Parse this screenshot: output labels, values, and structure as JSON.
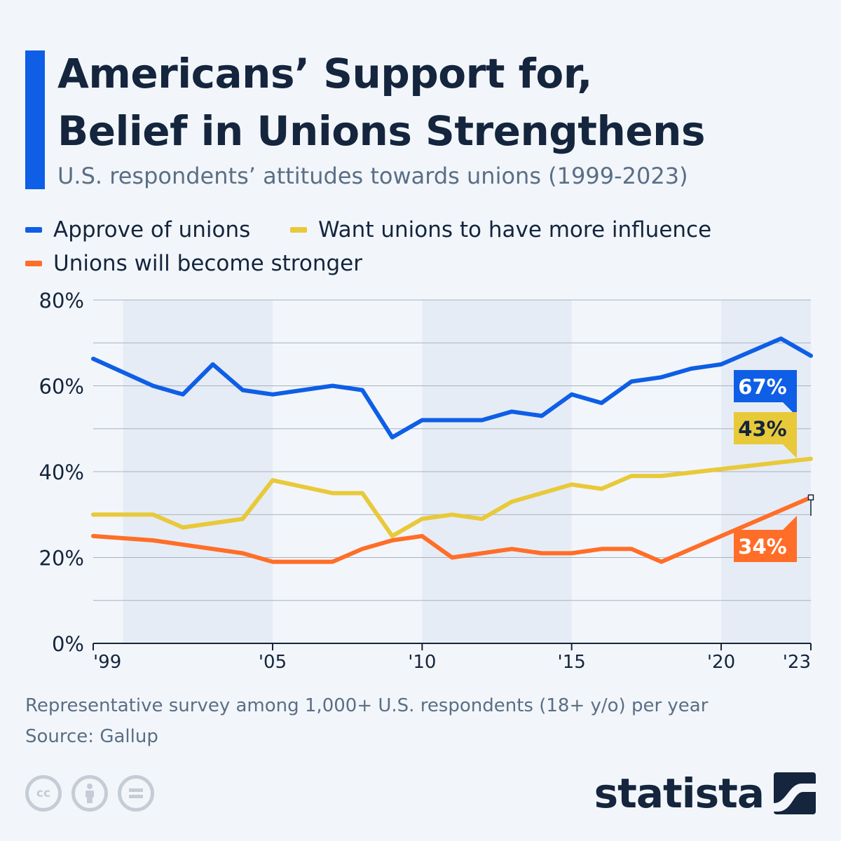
{
  "header": {
    "title_line1": "Americans’ Support for,",
    "title_line2": "Belief in Unions Strengthens",
    "subtitle": "U.S. respondents’ attitudes towards unions (1999-2023)"
  },
  "colors": {
    "approve": "#0e5ee6",
    "influence": "#e8c93a",
    "stronger": "#ff6e28",
    "accent": "#0e5ee6",
    "text": "#14253d"
  },
  "chart_data": {
    "type": "line",
    "title": "Americans’ Support for, Belief in Unions Strengthens",
    "xlim": [
      1999,
      2023
    ],
    "ylim": [
      0,
      80
    ],
    "yticks": [
      0,
      20,
      40,
      60,
      80
    ],
    "ytick_labels": [
      "0%",
      "20%",
      "40%",
      "60%",
      "80%"
    ],
    "xticks": [
      1999,
      2005,
      2010,
      2015,
      2020,
      2023
    ],
    "xtick_labels": [
      "'99",
      "'05",
      "'10",
      "'15",
      "'20",
      "'23"
    ],
    "grid": true,
    "legend_position": "top-left",
    "series": [
      {
        "name": "Approve of unions",
        "color": "#0e5ee6",
        "points": [
          [
            1999,
            66.3
          ],
          [
            2001,
            60
          ],
          [
            2002,
            58
          ],
          [
            2003,
            65
          ],
          [
            2004,
            59
          ],
          [
            2005,
            58
          ],
          [
            2007,
            60
          ],
          [
            2008,
            59
          ],
          [
            2009,
            48
          ],
          [
            2010,
            52
          ],
          [
            2011,
            52
          ],
          [
            2012,
            52
          ],
          [
            2013,
            54
          ],
          [
            2014,
            53
          ],
          [
            2015,
            58
          ],
          [
            2016,
            56
          ],
          [
            2017,
            61
          ],
          [
            2018,
            62
          ],
          [
            2019,
            64
          ],
          [
            2020,
            65
          ],
          [
            2022,
            71
          ],
          [
            2023,
            67
          ]
        ],
        "end_label": "67%"
      },
      {
        "name": "Want unions to have more influence",
        "color": "#e8c93a",
        "points": [
          [
            1999,
            30
          ],
          [
            2001,
            30
          ],
          [
            2002,
            27
          ],
          [
            2004,
            29
          ],
          [
            2005,
            38
          ],
          [
            2007,
            35
          ],
          [
            2008,
            35
          ],
          [
            2009,
            25
          ],
          [
            2010,
            29
          ],
          [
            2011,
            30
          ],
          [
            2012,
            29
          ],
          [
            2013,
            33
          ],
          [
            2015,
            37
          ],
          [
            2016,
            36
          ],
          [
            2017,
            39
          ],
          [
            2018,
            39
          ],
          [
            2023,
            43
          ]
        ],
        "end_label": "43%"
      },
      {
        "name": "Unions will become stronger",
        "color": "#ff6e28",
        "points": [
          [
            1999,
            25
          ],
          [
            2001,
            24
          ],
          [
            2004,
            21
          ],
          [
            2005,
            19
          ],
          [
            2007,
            19
          ],
          [
            2008,
            22
          ],
          [
            2009,
            24
          ],
          [
            2010,
            25
          ],
          [
            2011,
            20
          ],
          [
            2013,
            22
          ],
          [
            2014,
            21
          ],
          [
            2015,
            21
          ],
          [
            2016,
            22
          ],
          [
            2017,
            22
          ],
          [
            2018,
            19
          ],
          [
            2023,
            34
          ]
        ],
        "end_label": "34%"
      }
    ]
  },
  "footer": {
    "note": "Representative survey among 1,000+ U.S. respondents (18+ y/o) per year",
    "source": "Source: Gallup",
    "brand": "statista",
    "cc_icons": [
      "cc-icon",
      "attribution-icon",
      "no-derivatives-icon"
    ]
  }
}
